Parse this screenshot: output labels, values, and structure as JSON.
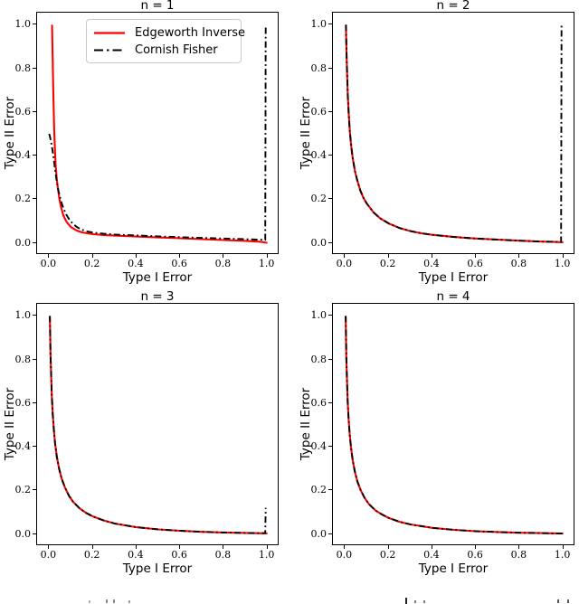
{
  "figure": {
    "background": "#ffffff",
    "rows": 2,
    "cols": 2,
    "caption_cropped": true
  },
  "legend": {
    "position": "upper-left-of-first-subplot",
    "entries": [
      {
        "label": "Edgeworth Inverse",
        "color": "#ff0000",
        "line_style": "solid"
      },
      {
        "label": "Cornish Fisher",
        "color": "#000000",
        "line_style": "dashdot"
      }
    ]
  },
  "chart_data": [
    {
      "type": "line",
      "title": "n = 1",
      "xlabel": "Type I Error",
      "ylabel": "Type II Error",
      "xlim": [
        0,
        1
      ],
      "ylim": [
        0,
        1
      ],
      "axes_margin": 0.05,
      "grid": false,
      "xticks": [
        0.0,
        0.2,
        0.4,
        0.6,
        0.8,
        1.0
      ],
      "yticks": [
        0.0,
        0.2,
        0.4,
        0.6,
        0.8,
        1.0
      ],
      "series": [
        {
          "name": "Edgeworth Inverse",
          "color": "#ff0000",
          "style": "solid",
          "points": [
            [
              0.013,
              1.0
            ],
            [
              0.015,
              0.9
            ],
            [
              0.017,
              0.78
            ],
            [
              0.02,
              0.64
            ],
            [
              0.023,
              0.52
            ],
            [
              0.026,
              0.43
            ],
            [
              0.03,
              0.35
            ],
            [
              0.035,
              0.29
            ],
            [
              0.04,
              0.25
            ],
            [
              0.047,
              0.2
            ],
            [
              0.055,
              0.16
            ],
            [
              0.065,
              0.125
            ],
            [
              0.08,
              0.095
            ],
            [
              0.1,
              0.072
            ],
            [
              0.125,
              0.057
            ],
            [
              0.15,
              0.048
            ],
            [
              0.2,
              0.04
            ],
            [
              0.25,
              0.036
            ],
            [
              0.3,
              0.033
            ],
            [
              0.4,
              0.029
            ],
            [
              0.5,
              0.025
            ],
            [
              0.6,
              0.021
            ],
            [
              0.7,
              0.017
            ],
            [
              0.8,
              0.013
            ],
            [
              0.88,
              0.01
            ],
            [
              0.94,
              0.007
            ],
            [
              0.975,
              0.004
            ],
            [
              1.0,
              0.0
            ]
          ]
        },
        {
          "name": "Cornish Fisher",
          "color": "#000000",
          "style": "dashdot",
          "points": [
            [
              0.0,
              0.5
            ],
            [
              0.005,
              0.48
            ],
            [
              0.01,
              0.455
            ],
            [
              0.015,
              0.425
            ],
            [
              0.02,
              0.39
            ],
            [
              0.025,
              0.352
            ],
            [
              0.03,
              0.315
            ],
            [
              0.035,
              0.28
            ],
            [
              0.04,
              0.25
            ],
            [
              0.048,
              0.215
            ],
            [
              0.056,
              0.185
            ],
            [
              0.066,
              0.157
            ],
            [
              0.078,
              0.13
            ],
            [
              0.092,
              0.107
            ],
            [
              0.108,
              0.088
            ],
            [
              0.126,
              0.073
            ],
            [
              0.148,
              0.061
            ],
            [
              0.175,
              0.052
            ],
            [
              0.21,
              0.046
            ],
            [
              0.25,
              0.042
            ],
            [
              0.3,
              0.038
            ],
            [
              0.4,
              0.034
            ],
            [
              0.5,
              0.03
            ],
            [
              0.6,
              0.026
            ],
            [
              0.7,
              0.023
            ],
            [
              0.8,
              0.02
            ],
            [
              0.9,
              0.017
            ],
            [
              0.95,
              0.015
            ],
            [
              0.99,
              0.014
            ],
            [
              0.992,
              1.0
            ]
          ]
        }
      ]
    },
    {
      "type": "line",
      "title": "n = 2",
      "xlabel": "Type I Error",
      "ylabel": "Type II Error",
      "xlim": [
        0,
        1
      ],
      "ylim": [
        0,
        1
      ],
      "axes_margin": 0.05,
      "grid": false,
      "xticks": [
        0.0,
        0.2,
        0.4,
        0.6,
        0.8,
        1.0
      ],
      "yticks": [
        0.0,
        0.2,
        0.4,
        0.6,
        0.8,
        1.0
      ],
      "series": [
        {
          "name": "Edgeworth Inverse",
          "color": "#ff0000",
          "style": "solid",
          "points": [
            [
              0.004,
              1.0
            ],
            [
              0.005,
              0.95
            ],
            [
              0.007,
              0.86
            ],
            [
              0.01,
              0.76
            ],
            [
              0.013,
              0.67
            ],
            [
              0.017,
              0.59
            ],
            [
              0.022,
              0.51
            ],
            [
              0.028,
              0.445
            ],
            [
              0.035,
              0.39
            ],
            [
              0.045,
              0.33
            ],
            [
              0.055,
              0.29
            ],
            [
              0.07,
              0.24
            ],
            [
              0.085,
              0.205
            ],
            [
              0.1,
              0.18
            ],
            [
              0.13,
              0.14
            ],
            [
              0.16,
              0.113
            ],
            [
              0.2,
              0.089
            ],
            [
              0.25,
              0.068
            ],
            [
              0.3,
              0.054
            ],
            [
              0.35,
              0.044
            ],
            [
              0.4,
              0.037
            ],
            [
              0.5,
              0.027
            ],
            [
              0.6,
              0.02
            ],
            [
              0.7,
              0.015
            ],
            [
              0.8,
              0.01
            ],
            [
              0.9,
              0.006
            ],
            [
              0.95,
              0.005
            ],
            [
              1.0,
              0.003
            ]
          ]
        },
        {
          "name": "Cornish Fisher",
          "color": "#000000",
          "style": "dashdot",
          "points": [
            [
              0.004,
              1.0
            ],
            [
              0.005,
              0.95
            ],
            [
              0.007,
              0.86
            ],
            [
              0.01,
              0.76
            ],
            [
              0.013,
              0.67
            ],
            [
              0.017,
              0.59
            ],
            [
              0.022,
              0.51
            ],
            [
              0.028,
              0.445
            ],
            [
              0.035,
              0.39
            ],
            [
              0.045,
              0.33
            ],
            [
              0.055,
              0.29
            ],
            [
              0.07,
              0.24
            ],
            [
              0.085,
              0.205
            ],
            [
              0.1,
              0.18
            ],
            [
              0.13,
              0.14
            ],
            [
              0.16,
              0.113
            ],
            [
              0.2,
              0.089
            ],
            [
              0.25,
              0.068
            ],
            [
              0.3,
              0.054
            ],
            [
              0.35,
              0.044
            ],
            [
              0.4,
              0.037
            ],
            [
              0.5,
              0.027
            ],
            [
              0.6,
              0.02
            ],
            [
              0.7,
              0.015
            ],
            [
              0.8,
              0.01
            ],
            [
              0.9,
              0.006
            ],
            [
              0.95,
              0.005
            ],
            [
              0.99,
              0.004
            ],
            [
              0.992,
              1.0
            ]
          ]
        }
      ]
    },
    {
      "type": "line",
      "title": "n = 3",
      "xlabel": "Type I Error",
      "ylabel": "Type II Error",
      "xlim": [
        0,
        1
      ],
      "ylim": [
        0,
        1
      ],
      "axes_margin": 0.05,
      "grid": false,
      "xticks": [
        0.0,
        0.2,
        0.4,
        0.6,
        0.8,
        1.0
      ],
      "yticks": [
        0.0,
        0.2,
        0.4,
        0.6,
        0.8,
        1.0
      ],
      "series": [
        {
          "name": "Edgeworth Inverse",
          "color": "#ff0000",
          "style": "solid",
          "points": [
            [
              0.003,
              1.0
            ],
            [
              0.004,
              0.93
            ],
            [
              0.006,
              0.83
            ],
            [
              0.009,
              0.72
            ],
            [
              0.012,
              0.63
            ],
            [
              0.016,
              0.55
            ],
            [
              0.021,
              0.48
            ],
            [
              0.027,
              0.415
            ],
            [
              0.035,
              0.355
            ],
            [
              0.045,
              0.3
            ],
            [
              0.057,
              0.255
            ],
            [
              0.072,
              0.213
            ],
            [
              0.09,
              0.176
            ],
            [
              0.11,
              0.147
            ],
            [
              0.14,
              0.117
            ],
            [
              0.17,
              0.096
            ],
            [
              0.2,
              0.081
            ],
            [
              0.25,
              0.062
            ],
            [
              0.3,
              0.048
            ],
            [
              0.4,
              0.031
            ],
            [
              0.5,
              0.021
            ],
            [
              0.6,
              0.015
            ],
            [
              0.7,
              0.01
            ],
            [
              0.8,
              0.007
            ],
            [
              0.9,
              0.005
            ],
            [
              1.0,
              0.003
            ]
          ]
        },
        {
          "name": "Cornish Fisher",
          "color": "#000000",
          "style": "dashdot",
          "points": [
            [
              0.003,
              1.0
            ],
            [
              0.004,
              0.93
            ],
            [
              0.006,
              0.83
            ],
            [
              0.009,
              0.72
            ],
            [
              0.012,
              0.63
            ],
            [
              0.016,
              0.55
            ],
            [
              0.021,
              0.48
            ],
            [
              0.027,
              0.415
            ],
            [
              0.035,
              0.355
            ],
            [
              0.045,
              0.3
            ],
            [
              0.057,
              0.255
            ],
            [
              0.072,
              0.213
            ],
            [
              0.09,
              0.176
            ],
            [
              0.11,
              0.147
            ],
            [
              0.14,
              0.117
            ],
            [
              0.17,
              0.096
            ],
            [
              0.2,
              0.081
            ],
            [
              0.25,
              0.062
            ],
            [
              0.3,
              0.048
            ],
            [
              0.4,
              0.031
            ],
            [
              0.5,
              0.021
            ],
            [
              0.6,
              0.015
            ],
            [
              0.7,
              0.01
            ],
            [
              0.8,
              0.007
            ],
            [
              0.9,
              0.005
            ],
            [
              0.99,
              0.004
            ],
            [
              0.992,
              0.12
            ]
          ]
        }
      ]
    },
    {
      "type": "line",
      "title": "n = 4",
      "xlabel": "Type I Error",
      "ylabel": "Type II Error",
      "xlim": [
        0,
        1
      ],
      "ylim": [
        0,
        1
      ],
      "axes_margin": 0.05,
      "grid": false,
      "xticks": [
        0.0,
        0.2,
        0.4,
        0.6,
        0.8,
        1.0
      ],
      "yticks": [
        0.0,
        0.2,
        0.4,
        0.6,
        0.8,
        1.0
      ],
      "series": [
        {
          "name": "Edgeworth Inverse",
          "color": "#ff0000",
          "style": "solid",
          "points": [
            [
              0.003,
              1.0
            ],
            [
              0.004,
              0.92
            ],
            [
              0.006,
              0.81
            ],
            [
              0.009,
              0.7
            ],
            [
              0.012,
              0.61
            ],
            [
              0.016,
              0.53
            ],
            [
              0.021,
              0.46
            ],
            [
              0.027,
              0.4
            ],
            [
              0.035,
              0.34
            ],
            [
              0.045,
              0.285
            ],
            [
              0.057,
              0.24
            ],
            [
              0.072,
              0.2
            ],
            [
              0.09,
              0.165
            ],
            [
              0.11,
              0.137
            ],
            [
              0.14,
              0.108
            ],
            [
              0.17,
              0.089
            ],
            [
              0.2,
              0.074
            ],
            [
              0.25,
              0.056
            ],
            [
              0.3,
              0.044
            ],
            [
              0.4,
              0.028
            ],
            [
              0.5,
              0.019
            ],
            [
              0.6,
              0.013
            ],
            [
              0.7,
              0.009
            ],
            [
              0.8,
              0.006
            ],
            [
              0.9,
              0.004
            ],
            [
              1.0,
              0.002
            ]
          ]
        },
        {
          "name": "Cornish Fisher",
          "color": "#000000",
          "style": "dashdot",
          "points": [
            [
              0.003,
              1.0
            ],
            [
              0.004,
              0.92
            ],
            [
              0.006,
              0.81
            ],
            [
              0.009,
              0.7
            ],
            [
              0.012,
              0.61
            ],
            [
              0.016,
              0.53
            ],
            [
              0.021,
              0.46
            ],
            [
              0.027,
              0.4
            ],
            [
              0.035,
              0.34
            ],
            [
              0.045,
              0.285
            ],
            [
              0.057,
              0.24
            ],
            [
              0.072,
              0.2
            ],
            [
              0.09,
              0.165
            ],
            [
              0.11,
              0.137
            ],
            [
              0.14,
              0.108
            ],
            [
              0.17,
              0.089
            ],
            [
              0.2,
              0.074
            ],
            [
              0.25,
              0.056
            ],
            [
              0.3,
              0.044
            ],
            [
              0.4,
              0.028
            ],
            [
              0.5,
              0.019
            ],
            [
              0.6,
              0.013
            ],
            [
              0.7,
              0.009
            ],
            [
              0.8,
              0.006
            ],
            [
              0.9,
              0.004
            ],
            [
              1.0,
              0.002
            ]
          ]
        }
      ]
    }
  ]
}
